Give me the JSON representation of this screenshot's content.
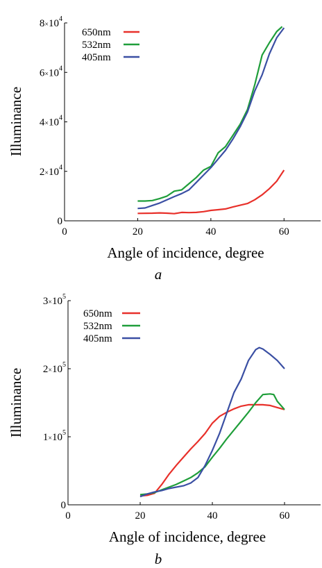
{
  "chart_data": [
    {
      "type": "line",
      "panel_label": "a",
      "xlabel": "Angle of incidence, degree",
      "ylabel": "Illuminance",
      "xlim": [
        0,
        70
      ],
      "ylim": [
        0,
        80000
      ],
      "x_ticks": [
        0,
        20,
        40,
        60
      ],
      "y_ticks": [
        {
          "value": 0,
          "mantissa": "0",
          "times": "",
          "base": "",
          "exp": ""
        },
        {
          "value": 20000,
          "mantissa": "2",
          "times": "×",
          "base": "10",
          "exp": "4"
        },
        {
          "value": 40000,
          "mantissa": "4",
          "times": "×",
          "base": "10",
          "exp": "4"
        },
        {
          "value": 60000,
          "mantissa": "6",
          "times": "×",
          "base": "10",
          "exp": "4"
        },
        {
          "value": 80000,
          "mantissa": "8",
          "times": "×",
          "base": "10",
          "exp": "4"
        }
      ],
      "legend_position": "top-left",
      "series": [
        {
          "name": "650nm",
          "color": "#e8302a",
          "x": [
            20,
            24,
            26,
            28,
            30,
            32,
            34,
            36,
            38,
            40,
            42,
            44,
            46,
            48,
            50,
            52,
            54,
            56,
            58,
            60
          ],
          "y": [
            3000,
            3100,
            3200,
            3100,
            2900,
            3400,
            3300,
            3400,
            3700,
            4200,
            4500,
            4800,
            5600,
            6300,
            7000,
            8500,
            10500,
            13000,
            16000,
            20500
          ]
        },
        {
          "name": "532nm",
          "color": "#1f9e3a",
          "x": [
            20,
            22,
            24,
            26,
            28,
            30,
            32,
            34,
            36,
            38,
            40,
            42,
            44,
            46,
            48,
            50,
            52,
            54,
            56,
            58,
            59.5
          ],
          "y": [
            8000,
            8000,
            8200,
            9000,
            10000,
            12000,
            12500,
            15000,
            17500,
            20500,
            22000,
            27500,
            30000,
            34500,
            39000,
            45000,
            55000,
            67000,
            72000,
            76500,
            78500
          ]
        },
        {
          "name": "405nm",
          "color": "#3a4fa3",
          "x": [
            20,
            22,
            24,
            26,
            28,
            30,
            32,
            34,
            36,
            38,
            40,
            42,
            44,
            46,
            48,
            50,
            52,
            54,
            56,
            58,
            60
          ],
          "y": [
            5000,
            5200,
            6200,
            7200,
            8500,
            9800,
            11000,
            12500,
            15500,
            18500,
            21500,
            25000,
            28500,
            33000,
            38000,
            44000,
            52500,
            59000,
            67500,
            74000,
            78000
          ]
        }
      ]
    },
    {
      "type": "line",
      "panel_label": "b",
      "xlabel": "Angle of incidence, degree",
      "ylabel": "Illuminance",
      "xlim": [
        0,
        70
      ],
      "ylim": [
        0,
        300000
      ],
      "x_ticks": [
        0,
        20,
        40,
        60
      ],
      "y_ticks": [
        {
          "value": 0,
          "mantissa": "0",
          "times": "",
          "base": "",
          "exp": ""
        },
        {
          "value": 100000,
          "mantissa": "1",
          "times": "×",
          "base": "10",
          "exp": "5"
        },
        {
          "value": 200000,
          "mantissa": "2",
          "times": "×",
          "base": "10",
          "exp": "5"
        },
        {
          "value": 300000,
          "mantissa": "3",
          "times": "×",
          "base": "10",
          "exp": "5"
        }
      ],
      "legend_position": "top-left",
      "series": [
        {
          "name": "650nm",
          "color": "#e8302a",
          "x": [
            20,
            22,
            24,
            26,
            28,
            30,
            32,
            34,
            36,
            38,
            40,
            42,
            44,
            46,
            48,
            50,
            52,
            54,
            56,
            58,
            60
          ],
          "y": [
            13000,
            14000,
            17000,
            30000,
            45000,
            58000,
            70000,
            82000,
            93000,
            105000,
            120000,
            130000,
            136000,
            141000,
            145000,
            147000,
            147000,
            147000,
            146000,
            143000,
            140000
          ]
        },
        {
          "name": "532nm",
          "color": "#1f9e3a",
          "x": [
            20,
            22,
            24,
            26,
            28,
            30,
            32,
            34,
            36,
            38,
            40,
            42,
            44,
            46,
            48,
            50,
            52,
            54,
            56,
            57,
            58,
            60
          ],
          "y": [
            15000,
            16000,
            18000,
            22000,
            26000,
            30000,
            35000,
            40000,
            47000,
            56000,
            70000,
            83000,
            97000,
            110000,
            123000,
            136000,
            150000,
            162000,
            163000,
            162000,
            152000,
            140000
          ]
        },
        {
          "name": "405nm",
          "color": "#3a4fa3",
          "x": [
            20,
            22,
            24,
            26,
            28,
            30,
            32,
            34,
            36,
            38,
            40,
            42,
            44,
            46,
            48,
            50,
            52,
            53,
            54,
            56,
            58,
            60
          ],
          "y": [
            12000,
            16000,
            19000,
            21000,
            24000,
            26000,
            28000,
            32000,
            40000,
            58000,
            80000,
            105000,
            135000,
            165000,
            185000,
            212000,
            228000,
            231000,
            229000,
            221000,
            212000,
            200000
          ]
        }
      ]
    }
  ]
}
